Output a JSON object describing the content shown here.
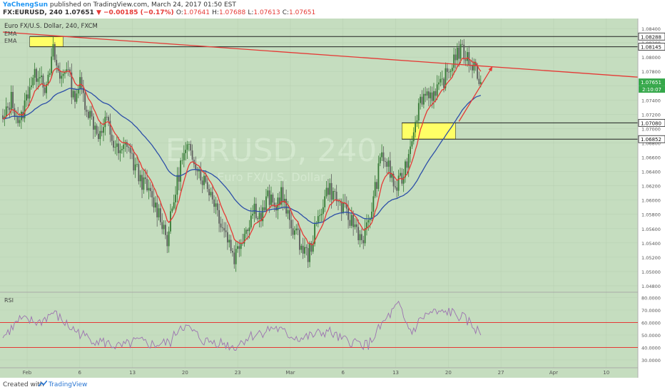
{
  "header": {
    "user": "YaChengSun",
    "published": "published on TradingView.com, March 24, 2017 01:50 EST",
    "symbol": "FX:EURUSD, 240",
    "last": "1.07651",
    "change": "▼ −0.00185 (−0.17%)",
    "o_label": "O:",
    "o": "1.07641",
    "h_label": "H:",
    "h": "1.07688",
    "l_label": "L:",
    "l": "1.07613",
    "c_label": "C:",
    "c": "1.07651"
  },
  "chart_title": "Euro FX/U.S. Dollar, 240, FXCM",
  "indicator_labels": [
    "EMA",
    "EMA"
  ],
  "rsi_label": "RSI",
  "watermark": "EURUSD, 240",
  "watermark_sub": "Euro FX/U.S. Dollar",
  "footer": {
    "created": "Created with",
    "brand": "TradingView"
  },
  "colors": {
    "bg": "#c5ddbf",
    "bull": "#357a35",
    "bear": "#5c5c5c",
    "ema_fast": "#e53935",
    "ema_slow": "#2d4fa8",
    "annotation": "#e53935",
    "highlight": "#ffff66",
    "rsi": "#9c72b0",
    "current": "#35a84a"
  },
  "chart_data": [
    {
      "type": "candlestick",
      "title": "Euro FX/U.S. Dollar, 240, FXCM",
      "x_ticks": [
        "Feb",
        "6",
        "13",
        "20",
        "23",
        "Mar",
        "6",
        "13",
        "20",
        "27",
        "Apr",
        "10"
      ],
      "y_ticks": [
        "1.08400",
        "1.08200",
        "1.08000",
        "1.07800",
        "1.07600",
        "1.07400",
        "1.07200",
        "1.07000",
        "1.06800",
        "1.06600",
        "1.06400",
        "1.06200",
        "1.06000",
        "1.05800",
        "1.05600",
        "1.05400",
        "1.05200",
        "1.05000",
        "1.04800"
      ],
      "ylim": [
        1.0475,
        1.0848
      ],
      "series": [
        {
          "name": "EMA",
          "kind": "ema",
          "period": 10
        },
        {
          "name": "EMA",
          "kind": "ema",
          "period": 50
        }
      ],
      "close_path": [
        [
          0,
          1.0708
        ],
        [
          5,
          1.0742
        ],
        [
          10,
          1.0705
        ],
        [
          16,
          1.0762
        ],
        [
          22,
          1.0782
        ],
        [
          26,
          1.0752
        ],
        [
          30,
          1.0808
        ],
        [
          34,
          1.0768
        ],
        [
          38,
          1.079
        ],
        [
          42,
          1.0744
        ],
        [
          46,
          1.0762
        ],
        [
          50,
          1.073
        ],
        [
          54,
          1.0708
        ],
        [
          58,
          1.069
        ],
        [
          62,
          1.0712
        ],
        [
          66,
          1.0678
        ],
        [
          70,
          1.0662
        ],
        [
          74,
          1.0682
        ],
        [
          78,
          1.065
        ],
        [
          82,
          1.063
        ],
        [
          86,
          1.0615
        ],
        [
          90,
          1.0595
        ],
        [
          94,
          1.0578
        ],
        [
          98,
          1.0545
        ],
        [
          102,
          1.06
        ],
        [
          106,
          1.065
        ],
        [
          110,
          1.067
        ],
        [
          114,
          1.066
        ],
        [
          118,
          1.0635
        ],
        [
          122,
          1.062
        ],
        [
          126,
          1.06
        ],
        [
          130,
          1.057
        ],
        [
          134,
          1.0548
        ],
        [
          138,
          1.052
        ],
        [
          142,
          1.0545
        ],
        [
          146,
          1.0565
        ],
        [
          150,
          1.059
        ],
        [
          154,
          1.0575
        ],
        [
          158,
          1.0605
        ],
        [
          162,
          1.0588
        ],
        [
          166,
          1.061
        ],
        [
          170,
          1.0575
        ],
        [
          174,
          1.0558
        ],
        [
          178,
          1.0535
        ],
        [
          182,
          1.0522
        ],
        [
          186,
          1.0555
        ],
        [
          190,
          1.059
        ],
        [
          194,
          1.0618
        ],
        [
          198,
          1.0605
        ],
        [
          202,
          1.059
        ],
        [
          206,
          1.0575
        ],
        [
          210,
          1.0565
        ],
        [
          214,
          1.0545
        ],
        [
          218,
          1.0565
        ],
        [
          222,
          1.0615
        ],
        [
          226,
          1.0665
        ],
        [
          230,
          1.0645
        ],
        [
          234,
          1.0615
        ],
        [
          238,
          1.063
        ],
        [
          242,
          1.0665
        ],
        [
          246,
          1.0715
        ],
        [
          250,
          1.0745
        ],
        [
          254,
          1.0752
        ],
        [
          258,
          1.0745
        ],
        [
          262,
          1.0765
        ],
        [
          266,
          1.078
        ],
        [
          270,
          1.0805
        ],
        [
          274,
          1.0808
        ],
        [
          278,
          1.0795
        ],
        [
          282,
          1.0785
        ],
        [
          285,
          1.07651
        ]
      ],
      "horizontal_levels": [
        {
          "label": "1.08288",
          "value": 1.08288
        },
        {
          "label": "1.08145",
          "value": 1.08145
        },
        {
          "label": "1.07080",
          "value": 1.0708
        },
        {
          "label": "1.06852",
          "value": 1.06852
        }
      ],
      "current_price": {
        "label": "1.07651",
        "value": 1.07651
      },
      "countdown": "2:10:07",
      "trendline": {
        "from": {
          "x": 0,
          "y": 1.0835
        },
        "to": {
          "x": "end",
          "y": 1.0772
        }
      },
      "zones": [
        {
          "from": 1.08288,
          "to": 1.08145,
          "x_from": 16,
          "x_to": 36
        },
        {
          "from": 1.0708,
          "to": 1.06852,
          "x_from": 238,
          "x_to": 270
        }
      ],
      "arrow": {
        "from": {
          "x": 272,
          "y": 1.071
        },
        "to": {
          "x": 292,
          "y": 1.0787
        }
      }
    },
    {
      "type": "line",
      "title": "RSI",
      "y_ticks": [
        "80.0000",
        "70.0000",
        "60.0000",
        "50.0000",
        "40.0000",
        "30.0000"
      ],
      "ylim": [
        26,
        82
      ],
      "levels": [
        60,
        40
      ],
      "path": [
        [
          0,
          48
        ],
        [
          10,
          62
        ],
        [
          22,
          60
        ],
        [
          30,
          68
        ],
        [
          40,
          56
        ],
        [
          50,
          48
        ],
        [
          60,
          44
        ],
        [
          70,
          40
        ],
        [
          80,
          45
        ],
        [
          90,
          42
        ],
        [
          100,
          44
        ],
        [
          106,
          58
        ],
        [
          112,
          54
        ],
        [
          120,
          45
        ],
        [
          130,
          44
        ],
        [
          138,
          40
        ],
        [
          146,
          48
        ],
        [
          154,
          52
        ],
        [
          162,
          56
        ],
        [
          170,
          50
        ],
        [
          178,
          47
        ],
        [
          186,
          50
        ],
        [
          194,
          53
        ],
        [
          202,
          46
        ],
        [
          210,
          44
        ],
        [
          218,
          42
        ],
        [
          226,
          58
        ],
        [
          232,
          68
        ],
        [
          236,
          74
        ],
        [
          240,
          60
        ],
        [
          244,
          52
        ],
        [
          250,
          64
        ],
        [
          256,
          68
        ],
        [
          262,
          67
        ],
        [
          266,
          69
        ],
        [
          270,
          66
        ],
        [
          274,
          64
        ],
        [
          278,
          60
        ],
        [
          282,
          55
        ],
        [
          285,
          50
        ]
      ]
    }
  ]
}
